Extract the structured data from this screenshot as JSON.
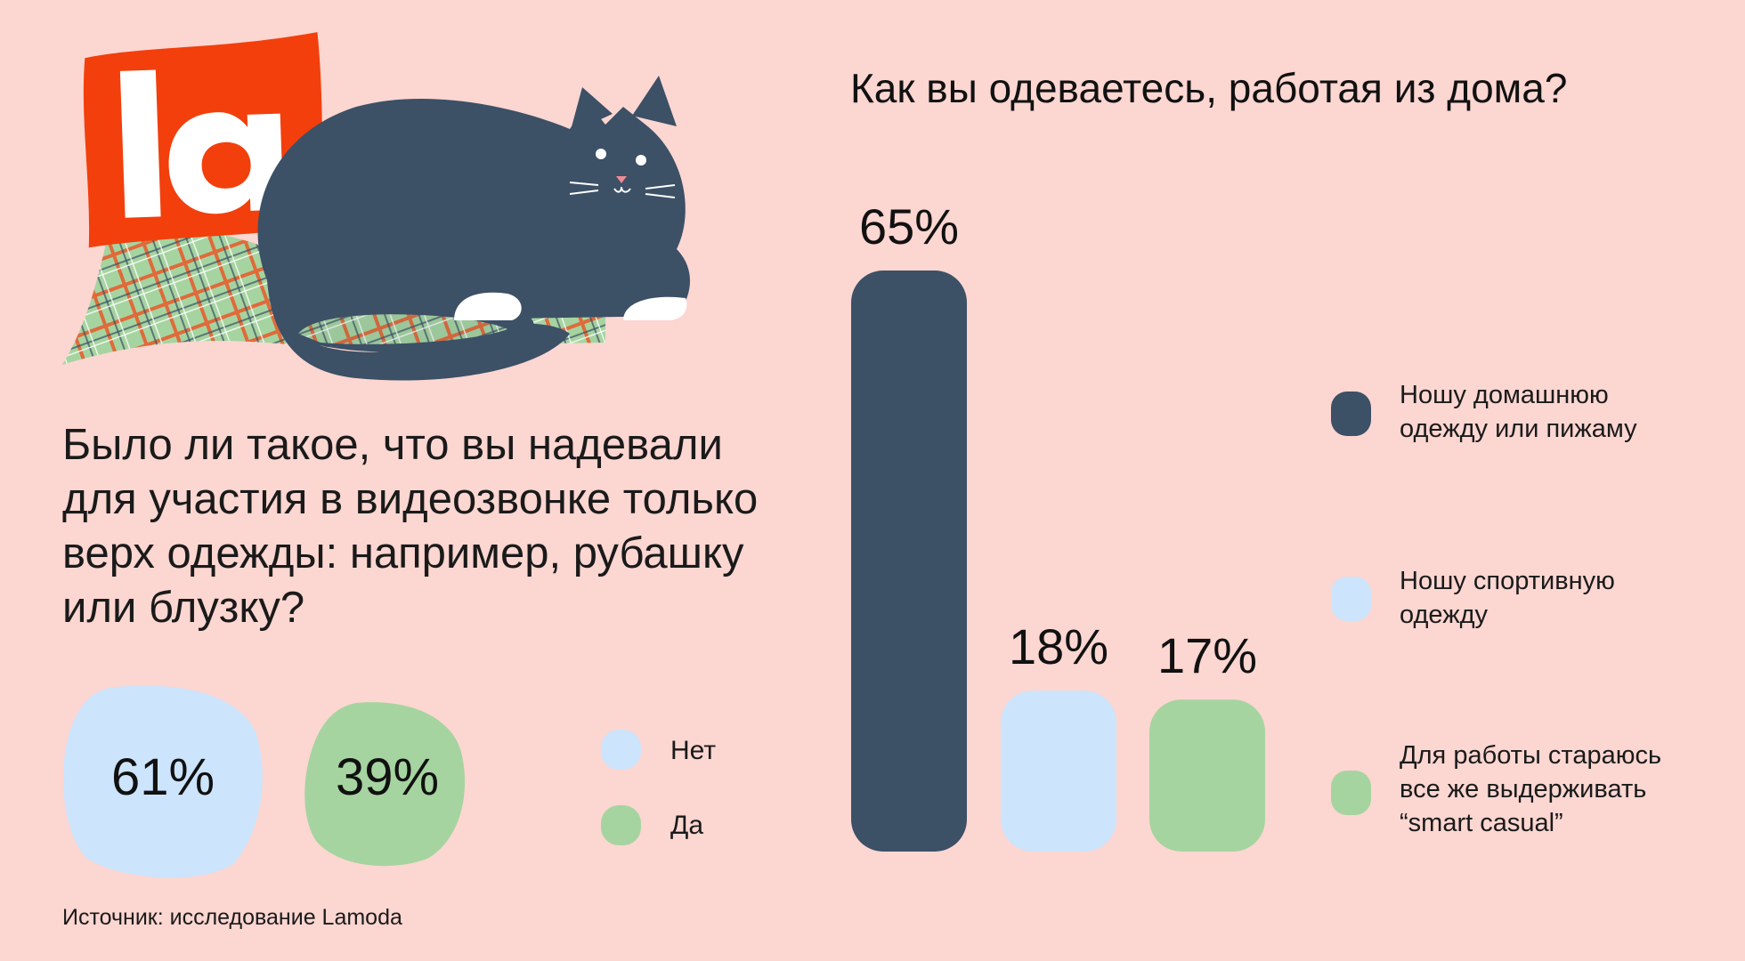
{
  "logo": {
    "text": "la",
    "color": "#f23f0c"
  },
  "left_chart": {
    "question": "Было ли такое, что вы надевали для участия в видеозвонке только верх одежды: например, рубашку или блузку?",
    "items": [
      {
        "label": "Нет",
        "percent_label": "61%",
        "value": 61,
        "color": "#cce4fc"
      },
      {
        "label": "Да",
        "percent_label": "39%",
        "value": 39,
        "color": "#a6d4a0"
      }
    ]
  },
  "source": "Источник: исследование Lamoda",
  "chart_data": {
    "type": "bar",
    "title": "Как вы одеваетесь, работая из дома?",
    "categories": [
      "Ношу домашнюю одежду или пижаму",
      "Ношу спортивную одежду",
      "Для работы стараюсь все же выдерживать “smart casual”"
    ],
    "values": [
      65,
      18,
      17
    ],
    "value_labels": [
      "65%",
      "18%",
      "17%"
    ],
    "colors": [
      "#3c5066",
      "#cce4fc",
      "#a6d4a0"
    ],
    "legend_lines": [
      [
        "Ношу домашнюю",
        "одежду или пижаму"
      ],
      [
        "Ношу спортивную",
        "одежду"
      ],
      [
        "Для работы стараюсь",
        "все же выдерживать",
        "“smart casual”"
      ]
    ],
    "legend_position": "right",
    "grid": false
  }
}
